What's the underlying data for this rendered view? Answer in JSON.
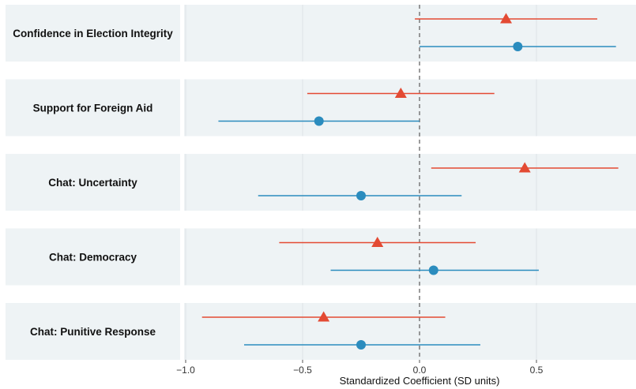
{
  "chart_data": {
    "type": "forest-plot",
    "xlabel": "Standardized Coefficient (SD units)",
    "x_ticks": [
      "−1.0",
      "−0.5",
      "0.0",
      "0.5"
    ],
    "x_tick_values": [
      -1.0,
      -0.5,
      0.0,
      0.5
    ],
    "xlim": [
      -1.02,
      0.86
    ],
    "reference_line": 0,
    "colors": {
      "red_series": "#e34a33",
      "blue_series": "#2b8cbe",
      "panel": "#eef3f5",
      "grid": "#dde3e6"
    },
    "rows": [
      {
        "label": "Confidence in Election Integrity",
        "red": {
          "estimate": 0.37,
          "low": -0.02,
          "high": 0.76,
          "marker": "triangle"
        },
        "blue": {
          "estimate": 0.42,
          "low": 0.0,
          "high": 0.84,
          "marker": "circle"
        }
      },
      {
        "label": "Support for Foreign Aid",
        "red": {
          "estimate": -0.08,
          "low": -0.48,
          "high": 0.32,
          "marker": "triangle"
        },
        "blue": {
          "estimate": -0.43,
          "low": -0.86,
          "high": 0.0,
          "marker": "circle"
        }
      },
      {
        "label": "Chat: Uncertainty",
        "red": {
          "estimate": 0.45,
          "low": 0.05,
          "high": 0.85,
          "marker": "triangle"
        },
        "blue": {
          "estimate": -0.25,
          "low": -0.69,
          "high": 0.18,
          "marker": "circle"
        }
      },
      {
        "label": "Chat: Democracy",
        "red": {
          "estimate": -0.18,
          "low": -0.6,
          "high": 0.24,
          "marker": "triangle"
        },
        "blue": {
          "estimate": 0.06,
          "low": -0.38,
          "high": 0.51,
          "marker": "circle"
        }
      },
      {
        "label": "Chat: Punitive Response",
        "red": {
          "estimate": -0.41,
          "low": -0.93,
          "high": 0.11,
          "marker": "triangle"
        },
        "blue": {
          "estimate": -0.25,
          "low": -0.75,
          "high": 0.26,
          "marker": "circle"
        }
      }
    ]
  }
}
